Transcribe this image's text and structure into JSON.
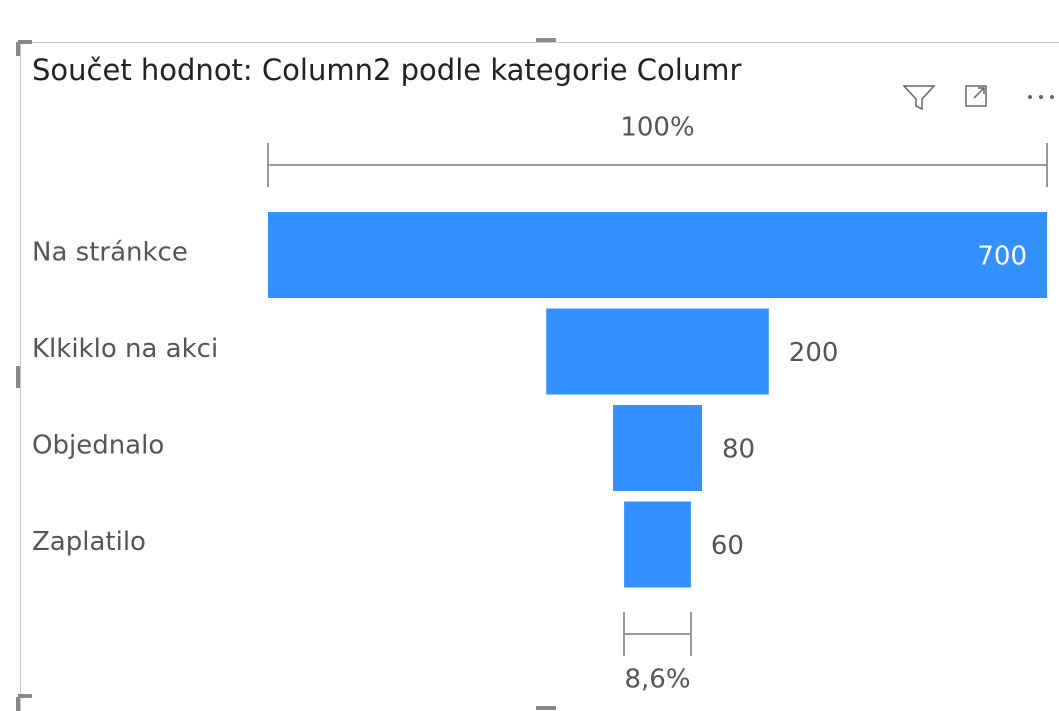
{
  "chart_data": {
    "type": "funnel",
    "title": "Součet hodnot: Column2 podle kategorie Columr",
    "categories": [
      "Na stránkce",
      "Klkiklo na akci",
      "Objednalo",
      "Zaplatilo"
    ],
    "values": [
      700,
      200,
      80,
      60
    ],
    "color": "#3390ff",
    "top_percent": {
      "value": 100,
      "label": "100%"
    },
    "bottom_percent": {
      "value": 8.6,
      "label": "8,6%"
    }
  }
}
